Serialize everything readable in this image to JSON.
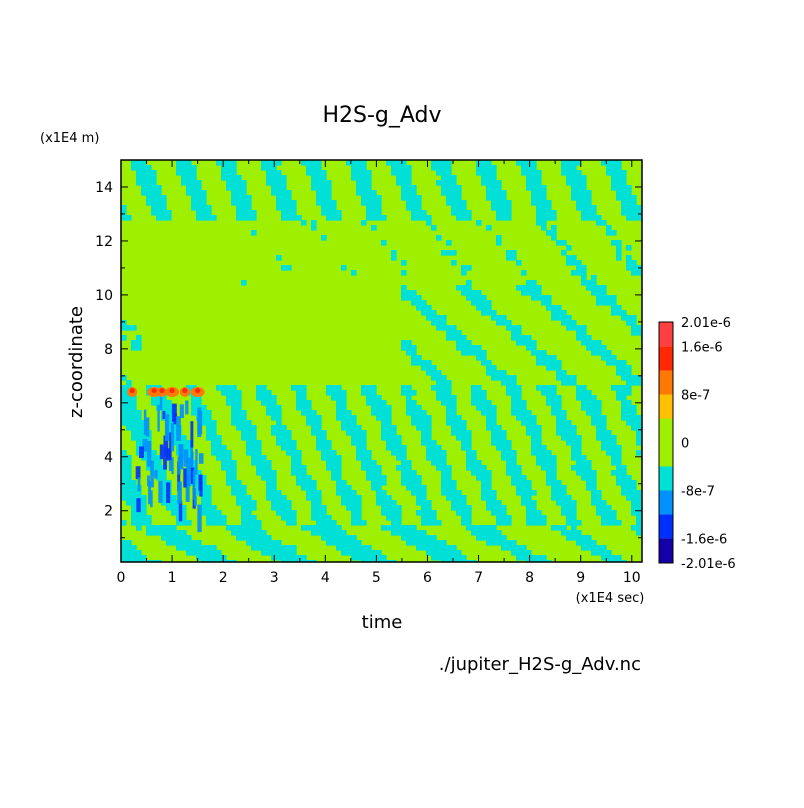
{
  "chart_data": {
    "type": "heatmap",
    "title": "H2S-g_Adv",
    "xlabel": "time",
    "ylabel": "z-coordinate",
    "x_unit": "(x1E4 sec)",
    "y_unit": "(x1E4 m)",
    "xlim": [
      0,
      10.2
    ],
    "ylim": [
      0.1,
      15
    ],
    "x_ticks": [
      "0",
      "1",
      "2",
      "3",
      "4",
      "5",
      "6",
      "7",
      "8",
      "9",
      "10"
    ],
    "y_ticks": [
      "2",
      "4",
      "6",
      "8",
      "10",
      "12",
      "14"
    ],
    "colorbar": {
      "levels": [
        -2.01e-06,
        -1.6e-06,
        -1.2e-06,
        -8e-07,
        -4e-07,
        0,
        4e-07,
        8e-07,
        1.2e-06,
        1.6e-06,
        2.01e-06
      ],
      "tick_labels": [
        "2.01e-6",
        "1.6e-6",
        "8e-7",
        "0",
        "-8e-7",
        "-1.6e-6",
        "-2.01e-6"
      ],
      "colors": [
        "#1400a8",
        "#0030ff",
        "#0090ff",
        "#00e0d6",
        "#9ef000",
        "#9ef000",
        "#ffc000",
        "#ff7800",
        "#ff2800",
        "#ff4040"
      ]
    },
    "colors": {
      "background_level": "#9ef000",
      "negative_level": "#00e0d6"
    },
    "caption": "./jupiter_H2S-g_Adv.nc"
  }
}
